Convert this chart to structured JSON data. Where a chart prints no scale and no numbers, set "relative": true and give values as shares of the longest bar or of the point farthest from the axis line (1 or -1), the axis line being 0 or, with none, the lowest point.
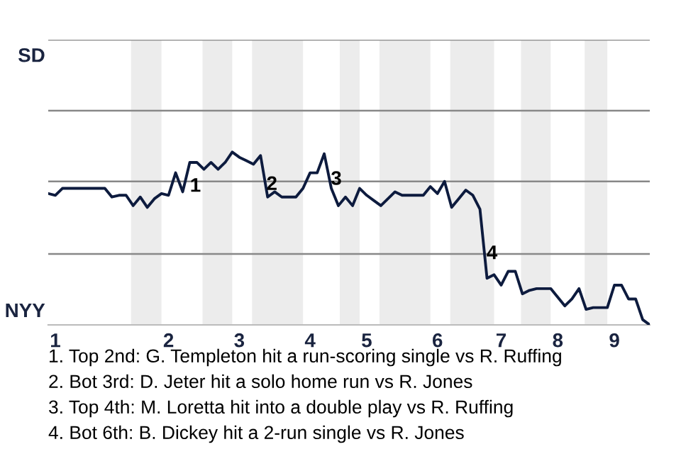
{
  "chart_data": {
    "type": "line",
    "relative": true,
    "categories": [
      null,
      "1",
      null,
      null,
      null,
      null,
      null,
      null,
      null,
      null,
      null,
      null,
      null,
      null,
      null,
      null,
      null,
      "2",
      null,
      null,
      null,
      null,
      null,
      null,
      null,
      null,
      null,
      "3",
      null,
      null,
      null,
      null,
      null,
      null,
      null,
      null,
      null,
      "4",
      null,
      null,
      null,
      null,
      null,
      null,
      null,
      "5",
      null,
      null,
      null,
      null,
      null,
      null,
      null,
      null,
      null,
      "6",
      null,
      null,
      null,
      null,
      null,
      null,
      null,
      null,
      "7",
      null,
      null,
      null,
      null,
      null,
      null,
      null,
      "8",
      null,
      null,
      null,
      null,
      null,
      null,
      null,
      "9",
      null,
      null,
      null,
      null,
      null
    ],
    "series": [
      {
        "color": "#0d1b3e",
        "values": [
          0.76,
          0.75,
          0.79,
          0.79,
          0.79,
          0.79,
          0.79,
          0.79,
          0.79,
          0.74,
          0.75,
          0.75,
          0.69,
          0.74,
          0.68,
          0.73,
          0.76,
          0.75,
          0.88,
          0.77,
          0.94,
          0.94,
          0.9,
          0.94,
          0.9,
          0.94,
          1.0,
          0.97,
          0.95,
          0.93,
          0.98,
          0.74,
          0.77,
          0.74,
          0.74,
          0.74,
          0.79,
          0.88,
          0.88,
          0.99,
          0.79,
          0.69,
          0.74,
          0.69,
          0.79,
          0.75,
          0.72,
          0.69,
          0.73,
          0.77,
          0.75,
          0.75,
          0.75,
          0.75,
          0.8,
          0.76,
          0.83,
          0.68,
          0.73,
          0.78,
          0.75,
          0.67,
          0.27,
          0.29,
          0.23,
          0.31,
          0.31,
          0.18,
          0.2,
          0.21,
          0.21,
          0.21,
          0.16,
          0.11,
          0.15,
          0.21,
          0.09,
          0.1,
          0.1,
          0.1,
          0.23,
          0.23,
          0.15,
          0.15,
          0.03,
          0.0
        ]
      }
    ],
    "ref_lines": [
      {
        "axis": "y",
        "value": 0.41,
        "color": "#888888"
      },
      {
        "axis": "y",
        "value": 0.83,
        "color": "#888888"
      },
      {
        "axis": "y",
        "value": 1.24,
        "color": "#888888"
      },
      {
        "axis": "y",
        "value": 1.65,
        "color": "#888888"
      }
    ],
    "marker": "none",
    "line_style": "solid",
    "annotations": [
      "SD",
      "NYY",
      "1",
      "2",
      "3",
      "4",
      "1. Top 2nd: G. Templeton hit a run-scoring single vs R. Ruffing",
      "2. Bot 3rd: D. Jeter hit a solo home run vs R. Jones",
      "3. Top 4th: M. Loretta hit into a double play vs R. Ruffing",
      "4. Bot 6th: B. Dickey hit a 2-run single vs R. Jones"
    ]
  }
}
